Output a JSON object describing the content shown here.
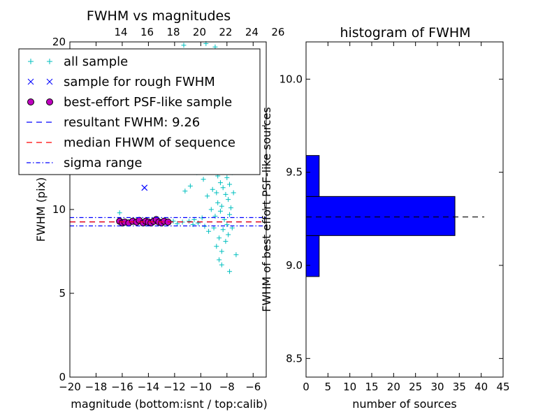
{
  "chart_data": [
    {
      "type": "scatter",
      "title": "FWHM vs magnitudes",
      "xlabel": "magnitude (bottom:isnt / top:calib)",
      "ylabel": "FWHM (pix)",
      "xlim": [
        -20,
        -5
      ],
      "ylim": [
        0,
        20
      ],
      "xticks": [
        -20,
        -18,
        -16,
        -14,
        -12,
        -10,
        -8,
        -6
      ],
      "yticks": [
        0,
        5,
        10,
        15,
        20
      ],
      "top_xticks": [
        14,
        16,
        18,
        20,
        22,
        24,
        26
      ],
      "top_axis_offset": 30.1,
      "legend_position": "upper-left",
      "grid": false,
      "series": [
        {
          "name": "all sample",
          "marker": "plus",
          "color": "#00bfbf",
          "points": [
            [
              -16.2,
              9.8
            ],
            [
              -15.8,
              9.2
            ],
            [
              -15.2,
              9.25
            ],
            [
              -14.6,
              9.3
            ],
            [
              -13.9,
              9.2
            ],
            [
              -13.2,
              9.35
            ],
            [
              -12.6,
              9.2
            ],
            [
              -12.1,
              9.3
            ],
            [
              -11.8,
              9.15
            ],
            [
              -11.4,
              9.25
            ],
            [
              -11.2,
              11.1
            ],
            [
              -10.9,
              9.3
            ],
            [
              -10.8,
              11.4
            ],
            [
              -10.6,
              9.1
            ],
            [
              -10.5,
              9.4
            ],
            [
              -10.3,
              12.2
            ],
            [
              -10.2,
              9.2
            ],
            [
              -10.0,
              13.0
            ],
            [
              -9.9,
              9.5
            ],
            [
              -9.8,
              11.8
            ],
            [
              -9.7,
              9.0
            ],
            [
              -9.6,
              12.5
            ],
            [
              -9.5,
              10.8
            ],
            [
              -9.4,
              8.7
            ],
            [
              -9.3,
              13.5
            ],
            [
              -9.2,
              10.0
            ],
            [
              -9.1,
              11.2
            ],
            [
              -9.0,
              8.9
            ],
            [
              -9.0,
              12.8
            ],
            [
              -8.9,
              14.0
            ],
            [
              -8.9,
              9.6
            ],
            [
              -8.8,
              11.0
            ],
            [
              -8.8,
              7.8
            ],
            [
              -8.7,
              12.0
            ],
            [
              -8.7,
              10.4
            ],
            [
              -8.6,
              13.2
            ],
            [
              -8.6,
              8.3
            ],
            [
              -8.5,
              14.5
            ],
            [
              -8.5,
              11.6
            ],
            [
              -8.5,
              9.9
            ],
            [
              -8.4,
              12.9
            ],
            [
              -8.4,
              10.2
            ],
            [
              -8.4,
              7.5
            ],
            [
              -8.3,
              13.8
            ],
            [
              -8.3,
              11.3
            ],
            [
              -8.3,
              8.8
            ],
            [
              -8.2,
              12.4
            ],
            [
              -8.2,
              9.4
            ],
            [
              -8.2,
              15.0
            ],
            [
              -8.1,
              10.9
            ],
            [
              -8.1,
              8.1
            ],
            [
              -8.1,
              13.6
            ],
            [
              -8.0,
              11.9
            ],
            [
              -8.0,
              9.1
            ],
            [
              -8.0,
              14.2
            ],
            [
              -7.9,
              10.6
            ],
            [
              -7.9,
              12.7
            ],
            [
              -7.9,
              8.5
            ],
            [
              -7.8,
              11.5
            ],
            [
              -7.8,
              9.7
            ],
            [
              -7.8,
              6.3
            ],
            [
              -7.7,
              13.1
            ],
            [
              -7.7,
              10.1
            ],
            [
              -7.6,
              12.2
            ],
            [
              -7.6,
              8.9
            ],
            [
              -7.5,
              11.0
            ],
            [
              -7.3,
              7.3
            ],
            [
              -8.6,
              7.0
            ],
            [
              -8.4,
              6.7
            ],
            [
              -9.4,
              15.5
            ],
            [
              -8.8,
              15.8
            ],
            [
              -8.2,
              16.5
            ],
            [
              -8.0,
              17.5
            ],
            [
              -11.3,
              19.8
            ],
            [
              -9.6,
              19.9
            ],
            [
              -8.9,
              19.7
            ]
          ]
        },
        {
          "name": "sample for rough FWHM",
          "marker": "x",
          "color": "#0000ff",
          "points": [
            [
              -14.3,
              11.3
            ]
          ]
        },
        {
          "name": "best-effort PSF-like sample",
          "marker": "circle",
          "color": "#bf00bf",
          "points": [
            [
              -16.2,
              9.3
            ],
            [
              -16.0,
              9.2
            ],
            [
              -15.8,
              9.25
            ],
            [
              -15.5,
              9.2
            ],
            [
              -15.2,
              9.3
            ],
            [
              -14.9,
              9.25
            ],
            [
              -14.7,
              9.35
            ],
            [
              -14.4,
              9.2
            ],
            [
              -14.2,
              9.3
            ],
            [
              -14.0,
              9.25
            ],
            [
              -13.8,
              9.2
            ],
            [
              -13.6,
              9.3
            ],
            [
              -13.4,
              9.4
            ],
            [
              -13.2,
              9.25
            ],
            [
              -13.0,
              9.2
            ],
            [
              -12.8,
              9.3
            ],
            [
              -12.5,
              9.25
            ]
          ]
        },
        {
          "name": "resultant FWHM: 9.26",
          "line": "dashed",
          "color": "#0000ff",
          "value": 9.26
        },
        {
          "name": "median FHWM of sequence",
          "line": "dashed",
          "color": "#ff0000",
          "value": 9.26
        },
        {
          "name": "sigma range",
          "line": "dashdot",
          "color": "#0000ff",
          "values": [
            9.02,
            9.52
          ]
        }
      ]
    },
    {
      "type": "bar",
      "orientation": "horizontal",
      "title": "histogram of FWHM",
      "xlabel": "number of sources",
      "ylabel": "FWHM of best effort PSF-like sources",
      "xlim": [
        0,
        45
      ],
      "ylim": [
        8.4,
        10.2
      ],
      "xticks": [
        0,
        5,
        10,
        15,
        20,
        25,
        30,
        35,
        40,
        45
      ],
      "yticks": [
        8.5,
        9.0,
        9.5,
        10.0
      ],
      "bins": [
        {
          "from": 8.94,
          "to": 9.16,
          "count": 3
        },
        {
          "from": 9.16,
          "to": 9.37,
          "count": 34
        },
        {
          "from": 9.37,
          "to": 9.59,
          "count": 3
        }
      ],
      "bar_color": "#0000ff",
      "reference_line": {
        "value": 9.26,
        "style": "dashed",
        "color": "#000000"
      }
    }
  ]
}
